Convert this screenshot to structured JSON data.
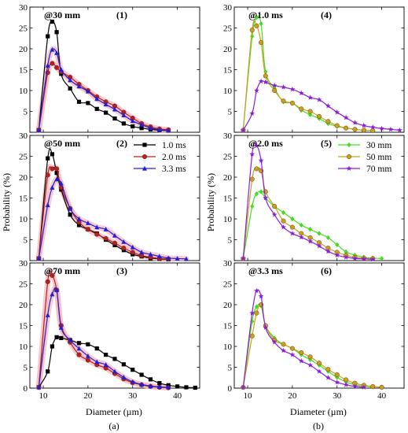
{
  "figure": {
    "xlabel": "Diameter (µm)",
    "ylabel": "Probability (%)",
    "sub_a": "(a)",
    "sub_b": "(b)"
  },
  "colors": {
    "1.0 ms": "#000000",
    "2.0 ms": "#b22222",
    "3.3 ms": "#1f1fd6",
    "30 mm": "#44dd22",
    "50 mm": "#c9a01c",
    "70 mm": "#8a1fd6",
    "halo": "#f6b8bd"
  },
  "legends": [
    {
      "panel": 1,
      "entries": [
        "1.0 ms",
        "2.0 ms",
        "3.3 ms"
      ]
    },
    {
      "panel": 4,
      "entries": [
        "30 mm",
        "50 mm",
        "70 mm"
      ]
    }
  ],
  "chart_data": [
    {
      "type": "line",
      "panel": 0,
      "label": "@30 mm",
      "number": "(1)",
      "x": [
        9,
        11,
        12,
        13,
        14,
        16,
        18,
        20,
        22,
        24,
        26,
        28,
        30,
        32,
        34,
        36,
        38,
        40,
        42,
        44
      ],
      "xlim": [
        7,
        45
      ],
      "ylim": [
        0,
        30
      ],
      "xticks": [
        10,
        20,
        30,
        40
      ],
      "yticks": [
        0,
        5,
        10,
        15,
        20,
        25,
        30
      ],
      "ytick_labels": [
        "",
        "5",
        "10",
        "15",
        "20",
        "25",
        "30"
      ],
      "xtick_labels_visible": false,
      "halo": true,
      "series": [
        {
          "name": "1.0 ms",
          "marker": "square",
          "x": [
            9,
            11,
            12,
            13,
            14,
            16,
            18,
            20,
            22,
            24,
            26,
            28,
            30,
            32,
            34,
            36,
            38
          ],
          "values": [
            0.5,
            23,
            26.5,
            24,
            14,
            10.5,
            7.3,
            7,
            5.6,
            4.7,
            3.3,
            2.1,
            1.4,
            1,
            0.7,
            0.5,
            0.4
          ]
        },
        {
          "name": "2.0 ms",
          "marker": "circle",
          "x": [
            9,
            11,
            12,
            13,
            14,
            16,
            18,
            20,
            22,
            24,
            26,
            28,
            30,
            32,
            34,
            36,
            38
          ],
          "values": [
            0.5,
            14.3,
            16.5,
            15.5,
            14.5,
            13.2,
            11.5,
            10,
            8.5,
            7.3,
            6.3,
            4.8,
            3.4,
            2.1,
            1.3,
            0.8,
            0.6
          ]
        },
        {
          "name": "3.3 ms",
          "marker": "triangle",
          "x": [
            9,
            11,
            12,
            13,
            14,
            16,
            18,
            20,
            22,
            24,
            26,
            28,
            30,
            32,
            34,
            36,
            38
          ],
          "values": [
            0.5,
            16,
            19.8,
            19,
            15,
            12.5,
            11,
            9.8,
            8,
            6.7,
            5.5,
            4.1,
            2.7,
            1.8,
            1,
            0.6,
            0.4
          ]
        }
      ]
    },
    {
      "type": "line",
      "panel": 1,
      "label": "@50 mm",
      "number": "(2)",
      "xlim": [
        7,
        45
      ],
      "ylim": [
        0,
        30
      ],
      "xticks": [
        10,
        20,
        30,
        40
      ],
      "yticks": [
        0,
        5,
        10,
        15,
        20,
        25,
        30
      ],
      "ytick_labels": [
        "",
        "5",
        "10",
        "15",
        "20",
        "25",
        "30"
      ],
      "xtick_labels_visible": false,
      "halo": true,
      "series": [
        {
          "name": "1.0 ms",
          "marker": "square",
          "x": [
            9,
            11,
            12,
            13,
            14,
            16,
            18,
            20,
            22,
            24,
            26,
            28,
            30,
            32,
            34,
            36,
            38
          ],
          "values": [
            0.5,
            24.5,
            25.5,
            21,
            17,
            11,
            8.5,
            7.5,
            6.5,
            5,
            3.7,
            2.5,
            1.5,
            1,
            0.6,
            0.4,
            0.3
          ]
        },
        {
          "name": "2.0 ms",
          "marker": "circle",
          "x": [
            9,
            11,
            12,
            13,
            14,
            16,
            18,
            20,
            22,
            24,
            26,
            28,
            30,
            32,
            34,
            36,
            38
          ],
          "values": [
            0.5,
            20.5,
            22,
            22,
            17.5,
            12.5,
            9.2,
            7.5,
            6.3,
            5.3,
            4.2,
            3,
            2,
            1.2,
            0.8,
            0.5,
            0.4
          ]
        },
        {
          "name": "3.3 ms",
          "marker": "triangle",
          "x": [
            9,
            11,
            12,
            13,
            14,
            16,
            18,
            20,
            22,
            24,
            26,
            28,
            30,
            32,
            34,
            36,
            38,
            40,
            42
          ],
          "values": [
            0.5,
            13.3,
            17.5,
            19.5,
            18.5,
            12.5,
            10,
            9,
            8,
            7.5,
            6,
            4.5,
            3.2,
            2,
            1.5,
            1,
            0.6,
            0.5,
            0.4
          ]
        }
      ]
    },
    {
      "type": "line",
      "panel": 2,
      "label": "@70 mm",
      "number": "(3)",
      "xlim": [
        7,
        45
      ],
      "ylim": [
        0,
        30
      ],
      "xticks": [
        10,
        20,
        30,
        40
      ],
      "yticks": [
        0,
        5,
        10,
        15,
        20,
        25,
        30
      ],
      "ytick_labels": [
        "0",
        "5",
        "10",
        "15",
        "20",
        "25",
        "30"
      ],
      "xtick_labels_visible": true,
      "halo": true,
      "series": [
        {
          "name": "1.0 ms",
          "marker": "square",
          "x": [
            9,
            11,
            12,
            13,
            14,
            16,
            18,
            20,
            22,
            24,
            26,
            28,
            30,
            32,
            34,
            36,
            38,
            40,
            42,
            44
          ],
          "values": [
            0.2,
            4,
            10,
            12.2,
            12,
            11.5,
            10.8,
            10.5,
            9.5,
            8,
            7,
            5.7,
            4.4,
            3.2,
            2.1,
            1.2,
            0.7,
            0.4,
            0.2,
            0.1
          ]
        },
        {
          "name": "2.0 ms",
          "marker": "circle",
          "x": [
            9,
            11,
            12,
            13,
            14,
            16,
            18,
            20,
            22,
            24,
            26,
            28,
            30,
            32,
            34,
            36,
            38
          ],
          "values": [
            0.2,
            25.5,
            27,
            23.5,
            15,
            11,
            8,
            6.7,
            5.6,
            4.8,
            3.5,
            2.2,
            1.3,
            0.8,
            0.4,
            0.2,
            0.1
          ]
        },
        {
          "name": "3.3 ms",
          "marker": "triangle",
          "x": [
            9,
            11,
            12,
            13,
            14,
            16,
            18,
            20,
            22,
            24,
            26,
            28,
            30,
            32,
            34,
            36,
            38
          ],
          "values": [
            0.2,
            17.5,
            22.5,
            23.5,
            14.5,
            11.5,
            9.5,
            7.7,
            6.3,
            5.6,
            4,
            2.6,
            1.5,
            0.9,
            0.5,
            0.3,
            0.2
          ]
        }
      ]
    },
    {
      "type": "line",
      "panel": 3,
      "label": "@1.0 ms",
      "number": "(4)",
      "xlim": [
        7,
        45
      ],
      "ylim": [
        0,
        30
      ],
      "xticks": [
        10,
        20,
        30,
        40
      ],
      "yticks": [
        0,
        5,
        10,
        15,
        20,
        25,
        30
      ],
      "ytick_labels": [
        "",
        "5",
        "10",
        "15",
        "20",
        "25",
        "30"
      ],
      "xtick_labels_visible": false,
      "halo": false,
      "series": [
        {
          "name": "30 mm",
          "marker": "diamond",
          "x": [
            9,
            11,
            12,
            13,
            14,
            16,
            18,
            20,
            22,
            24,
            26,
            28,
            30,
            32,
            34,
            36,
            38
          ],
          "values": [
            0.5,
            23,
            27.5,
            26,
            14.5,
            10.5,
            7.3,
            7,
            5.3,
            4.2,
            3.3,
            2.1,
            1.4,
            1,
            0.7,
            0.5,
            0.4
          ]
        },
        {
          "name": "50 mm",
          "marker": "circle",
          "x": [
            9,
            11,
            12,
            13,
            14,
            16,
            18,
            20,
            22,
            24,
            26,
            28,
            30,
            32,
            34,
            36,
            38
          ],
          "values": [
            0.5,
            24.5,
            25.5,
            21.5,
            13.5,
            10,
            7.5,
            7,
            5.6,
            5,
            3.8,
            2.6,
            1.6,
            1,
            0.7,
            0.5,
            0.4
          ]
        },
        {
          "name": "70 mm",
          "marker": "star",
          "x": [
            9,
            11,
            12,
            13,
            14,
            16,
            18,
            20,
            22,
            24,
            26,
            28,
            30,
            32,
            34,
            36,
            38,
            40,
            42,
            44
          ],
          "values": [
            0.5,
            4.5,
            10,
            12.2,
            12,
            11.2,
            10.8,
            10.3,
            9.4,
            8.3,
            7.8,
            6.3,
            4.8,
            3.5,
            2.3,
            1.6,
            1.2,
            0.9,
            0.7,
            0.5
          ]
        }
      ]
    },
    {
      "type": "line",
      "panel": 4,
      "label": "@2.0 ms",
      "number": "(5)",
      "xlim": [
        7,
        45
      ],
      "ylim": [
        0,
        30
      ],
      "xticks": [
        10,
        20,
        30,
        40
      ],
      "yticks": [
        0,
        5,
        10,
        15,
        20,
        25,
        30
      ],
      "ytick_labels": [
        "",
        "5",
        "10",
        "15",
        "20",
        "25",
        "30"
      ],
      "xtick_labels_visible": false,
      "halo": false,
      "series": [
        {
          "name": "30 mm",
          "marker": "diamond",
          "x": [
            9,
            11,
            12,
            13,
            14,
            16,
            18,
            20,
            22,
            24,
            26,
            28,
            30,
            32,
            34,
            36,
            38,
            40
          ],
          "values": [
            0.5,
            13,
            16,
            16.5,
            15,
            13,
            11.5,
            10,
            8.5,
            7.5,
            6.5,
            5.5,
            3.8,
            2.1,
            1.3,
            0.8,
            0.6,
            0.5
          ]
        },
        {
          "name": "50 mm",
          "marker": "circle",
          "x": [
            9,
            11,
            12,
            13,
            14,
            16,
            18,
            20,
            22,
            24,
            26,
            28,
            30,
            32,
            34,
            36,
            38
          ],
          "values": [
            0.5,
            19.5,
            22,
            21.5,
            16.5,
            13,
            9.5,
            8,
            6.5,
            5.5,
            4.3,
            3,
            2,
            1.3,
            0.8,
            0.6,
            0.5
          ]
        },
        {
          "name": "70 mm",
          "marker": "star",
          "x": [
            9,
            11,
            12,
            13,
            14,
            16,
            18,
            20,
            22,
            24,
            26,
            28,
            30,
            32,
            34,
            36,
            38
          ],
          "values": [
            0.5,
            25.5,
            27.5,
            24,
            15,
            11,
            8,
            6.5,
            5.6,
            4.6,
            3.5,
            2.2,
            1.3,
            0.8,
            0.5,
            0.4,
            0.3
          ]
        }
      ]
    },
    {
      "type": "line",
      "panel": 5,
      "label": "@3.3 ms",
      "number": "(6)",
      "xlim": [
        7,
        45
      ],
      "ylim": [
        0,
        30
      ],
      "xticks": [
        10,
        20,
        30,
        40
      ],
      "yticks": [
        0,
        5,
        10,
        15,
        20,
        25,
        30
      ],
      "ytick_labels": [
        "0",
        "5",
        "10",
        "15",
        "20",
        "25",
        "30"
      ],
      "xtick_labels_visible": true,
      "halo": false,
      "series": [
        {
          "name": "30 mm",
          "marker": "diamond",
          "x": [
            9,
            11,
            12,
            13,
            14,
            16,
            18,
            20,
            22,
            24,
            26,
            28,
            30,
            32,
            34,
            36,
            38
          ],
          "values": [
            0.2,
            16,
            19.5,
            19.7,
            15,
            12,
            10.5,
            9.5,
            8,
            6.8,
            5.5,
            4,
            2.6,
            1.5,
            0.8,
            0.5,
            0.3
          ]
        },
        {
          "name": "50 mm",
          "marker": "circle",
          "x": [
            9,
            11,
            12,
            13,
            14,
            16,
            18,
            20,
            22,
            24,
            26,
            28,
            30,
            32,
            34,
            36,
            38,
            40
          ],
          "values": [
            0.2,
            12.5,
            18,
            20,
            15,
            11.5,
            10.5,
            9.5,
            8.5,
            7.5,
            6,
            4.5,
            3.2,
            2,
            1.2,
            0.7,
            0.4,
            0.2
          ]
        },
        {
          "name": "70 mm",
          "marker": "star",
          "x": [
            9,
            11,
            12,
            13,
            14,
            16,
            18,
            20,
            22,
            24,
            26,
            28,
            30,
            32,
            34,
            36
          ],
          "values": [
            0.2,
            18,
            23.3,
            22,
            14.5,
            11,
            9,
            8,
            6.5,
            5.5,
            4,
            2.5,
            1.4,
            0.8,
            0.4,
            0.2
          ]
        }
      ]
    }
  ]
}
